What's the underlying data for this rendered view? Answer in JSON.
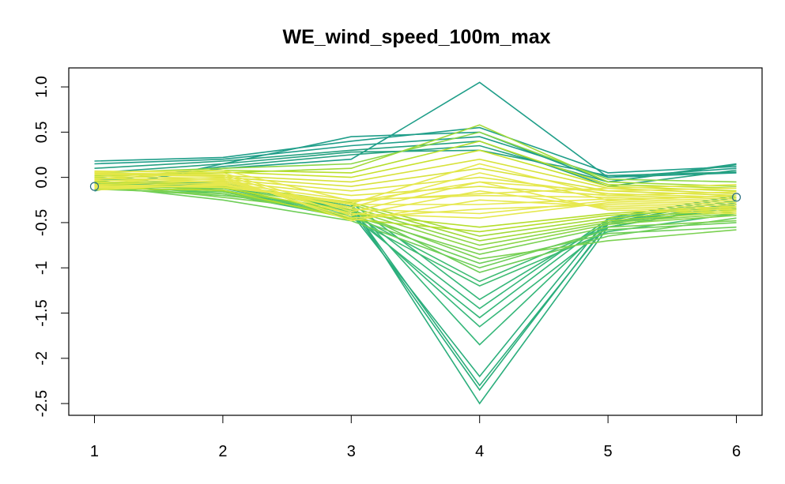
{
  "chart_data": {
    "type": "line",
    "title": "WE_wind_speed_100m_max",
    "xlabel": "",
    "ylabel": "",
    "x": [
      1,
      2,
      3,
      4,
      5,
      6
    ],
    "x_ticks": [
      "1",
      "2",
      "3",
      "4",
      "5",
      "6"
    ],
    "y_ticks": [
      {
        "value": 1.0,
        "label": "1.0"
      },
      {
        "value": 0.5,
        "label": "0.5"
      },
      {
        "value": 0.0,
        "label": "0.0"
      },
      {
        "value": -0.5,
        "label": "-0.5"
      },
      {
        "value": -1.0,
        "label": "-1"
      },
      {
        "value": -1.5,
        "label": "-1.5"
      },
      {
        "value": -2.0,
        "label": "-2"
      },
      {
        "value": -2.5,
        "label": "-2.5"
      }
    ],
    "xlim": [
      0.8,
      6.2
    ],
    "ylim": [
      -2.63,
      1.21
    ],
    "grid": false,
    "legend": "none",
    "colors": {
      "teal": "#1f9e89",
      "green": "#35b779",
      "lightgreen": "#6ece58",
      "yellowgreen": "#b5de2b",
      "yellow": "#e6e84e"
    },
    "series": [
      {
        "values": [
          -0.15,
          0.15,
          0.45,
          0.5,
          -0.05,
          0.15
        ],
        "color": "#1f9e89"
      },
      {
        "values": [
          0.18,
          0.22,
          0.4,
          0.55,
          0.05,
          0.12
        ],
        "color": "#1f9e89"
      },
      {
        "values": [
          0.15,
          0.2,
          0.35,
          0.45,
          0.0,
          0.1
        ],
        "color": "#1f9e89"
      },
      {
        "values": [
          -0.1,
          0.1,
          0.2,
          1.05,
          0.0,
          0.05
        ],
        "color": "#1f9e89"
      },
      {
        "values": [
          0.1,
          0.18,
          0.3,
          0.4,
          -0.1,
          0.08
        ],
        "color": "#26a181"
      },
      {
        "values": [
          -0.05,
          0.12,
          0.25,
          0.35,
          -0.05,
          0.14
        ],
        "color": "#26a181"
      },
      {
        "values": [
          0.05,
          0.15,
          0.28,
          0.3,
          0.02,
          0.06
        ],
        "color": "#26a181"
      },
      {
        "values": [
          -0.12,
          -0.1,
          -0.3,
          -2.5,
          -0.55,
          -0.3
        ],
        "color": "#2bae7c"
      },
      {
        "values": [
          -0.08,
          -0.05,
          -0.35,
          -2.35,
          -0.5,
          -0.25
        ],
        "color": "#2bae7c"
      },
      {
        "values": [
          -0.1,
          -0.08,
          -0.32,
          -2.3,
          -0.52,
          -0.28
        ],
        "color": "#2bae7c"
      },
      {
        "values": [
          -0.05,
          -0.12,
          -0.4,
          -2.2,
          -0.45,
          -0.2
        ],
        "color": "#2bae7c"
      },
      {
        "values": [
          0.0,
          -0.1,
          -0.3,
          -1.85,
          -0.5,
          -0.3
        ],
        "color": "#35b779"
      },
      {
        "values": [
          -0.06,
          -0.06,
          -0.38,
          -1.65,
          -0.55,
          -0.32
        ],
        "color": "#35b779"
      },
      {
        "values": [
          -0.04,
          -0.15,
          -0.42,
          -1.55,
          -0.48,
          -0.22
        ],
        "color": "#35b779"
      },
      {
        "values": [
          -0.02,
          -0.08,
          -0.36,
          -1.45,
          -0.46,
          -0.26
        ],
        "color": "#35b779"
      },
      {
        "values": [
          -0.1,
          -0.12,
          -0.28,
          -1.35,
          -0.5,
          -0.35
        ],
        "color": "#35b779"
      },
      {
        "values": [
          -0.08,
          -0.18,
          -0.45,
          -1.2,
          -0.6,
          -0.4
        ],
        "color": "#3fbc73"
      },
      {
        "values": [
          -0.05,
          -0.14,
          -0.4,
          -1.15,
          -0.55,
          -0.3
        ],
        "color": "#3fbc73"
      },
      {
        "values": [
          -0.12,
          -0.2,
          -0.35,
          -1.05,
          -0.65,
          -0.45
        ],
        "color": "#6ece58"
      },
      {
        "values": [
          -0.09,
          -0.25,
          -0.48,
          -1.0,
          -0.58,
          -0.5
        ],
        "color": "#6ece58"
      },
      {
        "values": [
          -0.11,
          -0.16,
          -0.44,
          -0.95,
          -0.62,
          -0.55
        ],
        "color": "#6ece58"
      },
      {
        "values": [
          -0.07,
          -0.22,
          -0.38,
          -0.9,
          -0.7,
          -0.58
        ],
        "color": "#7ad151"
      },
      {
        "values": [
          -0.13,
          -0.18,
          -0.42,
          -0.85,
          -0.55,
          -0.48
        ],
        "color": "#7ad151"
      },
      {
        "values": [
          -0.06,
          -0.15,
          -0.36,
          -0.8,
          -0.52,
          -0.42
        ],
        "color": "#8bd646"
      },
      {
        "values": [
          -0.1,
          -0.12,
          -0.33,
          -0.75,
          -0.5,
          -0.4
        ],
        "color": "#8bd646"
      },
      {
        "values": [
          -0.08,
          -0.1,
          -0.3,
          -0.7,
          -0.48,
          -0.38
        ],
        "color": "#a2da37"
      },
      {
        "values": [
          -0.05,
          -0.08,
          -0.28,
          -0.65,
          -0.45,
          -0.36
        ],
        "color": "#a2da37"
      },
      {
        "values": [
          -0.12,
          -0.14,
          -0.46,
          -0.6,
          -0.42,
          -0.34
        ],
        "color": "#b5de2b"
      },
      {
        "values": [
          -0.09,
          -0.11,
          -0.4,
          -0.55,
          -0.4,
          -0.32
        ],
        "color": "#b5de2b"
      },
      {
        "values": [
          0.02,
          0.05,
          0.1,
          0.58,
          -0.05,
          -0.1
        ],
        "color": "#a2da37"
      },
      {
        "values": [
          0.05,
          0.1,
          0.15,
          0.5,
          -0.02,
          -0.05
        ],
        "color": "#8bd646"
      },
      {
        "values": [
          0.0,
          0.08,
          0.05,
          0.4,
          -0.08,
          -0.12
        ],
        "color": "#b5de2b"
      },
      {
        "values": [
          -0.02,
          0.06,
          0.0,
          0.3,
          -0.1,
          -0.15
        ],
        "color": "#c9e12a"
      },
      {
        "values": [
          0.04,
          0.02,
          -0.05,
          0.2,
          -0.12,
          -0.18
        ],
        "color": "#d8e23a"
      },
      {
        "values": [
          -0.04,
          0.0,
          -0.1,
          0.1,
          -0.15,
          -0.2
        ],
        "color": "#d8e23a"
      },
      {
        "values": [
          -0.06,
          -0.02,
          -0.15,
          0.0,
          -0.18,
          -0.22
        ],
        "color": "#e0e645"
      },
      {
        "values": [
          -0.08,
          -0.04,
          -0.2,
          -0.1,
          -0.2,
          -0.24
        ],
        "color": "#e0e645"
      },
      {
        "values": [
          -0.1,
          -0.06,
          -0.25,
          -0.2,
          -0.22,
          -0.26
        ],
        "color": "#e6e84e"
      },
      {
        "values": [
          -0.12,
          -0.08,
          -0.3,
          -0.3,
          -0.24,
          -0.28
        ],
        "color": "#e6e84e"
      },
      {
        "values": [
          -0.03,
          -0.05,
          -0.35,
          -0.4,
          -0.26,
          -0.3
        ],
        "color": "#e6e84e"
      },
      {
        "values": [
          -0.01,
          -0.03,
          -0.4,
          -0.45,
          -0.28,
          -0.32
        ],
        "color": "#e6e84e"
      },
      {
        "values": [
          0.01,
          -0.01,
          -0.45,
          -0.35,
          -0.3,
          -0.34
        ],
        "color": "#e6e84e"
      },
      {
        "values": [
          0.03,
          0.01,
          -0.48,
          -0.25,
          -0.32,
          -0.36
        ],
        "color": "#e6e84e"
      },
      {
        "values": [
          0.05,
          0.03,
          -0.42,
          -0.15,
          -0.34,
          -0.38
        ],
        "color": "#e6e84e"
      },
      {
        "values": [
          0.07,
          0.05,
          -0.38,
          -0.05,
          -0.36,
          -0.4
        ],
        "color": "#e6e84e"
      },
      {
        "values": [
          -0.14,
          -0.07,
          -0.33,
          0.05,
          -0.25,
          -0.2
        ],
        "color": "#e6e84e"
      },
      {
        "values": [
          -0.11,
          -0.09,
          -0.29,
          0.15,
          -0.2,
          -0.16
        ],
        "color": "#e6e84e"
      },
      {
        "values": [
          -0.09,
          -0.11,
          -0.27,
          -0.05,
          -0.15,
          -0.12
        ],
        "color": "#e6e84e"
      },
      {
        "values": [
          0.06,
          0.08,
          -0.26,
          -0.18,
          -0.12,
          -0.08
        ],
        "color": "#e6e84e"
      }
    ]
  }
}
